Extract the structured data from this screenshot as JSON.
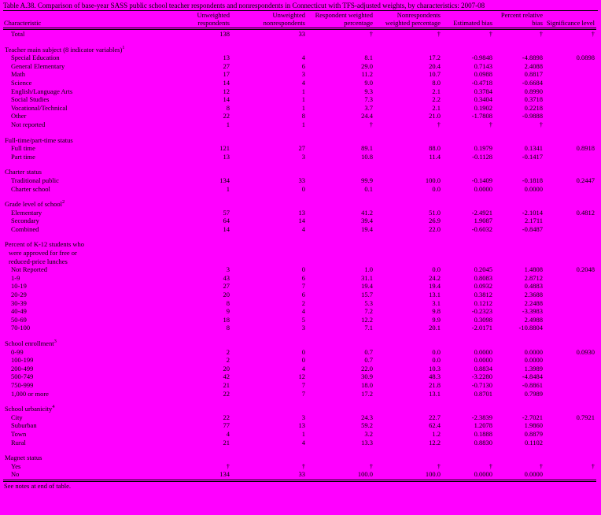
{
  "title": "Table A.38. Comparison of base-year SASS public school teacher respondents and nonrespondents in Connecticut with TFS-adjusted weights, by characteristics: 2007-08",
  "footer_note": "See notes at end of table.",
  "colors": {
    "background": "#FF00FF",
    "text": "#000000",
    "rule": "#000000"
  },
  "symbols": {
    "suppressed": "†"
  },
  "columns": [
    "Characteristic",
    "Unweighted respondents",
    "Unweighted nonrespondents",
    "Respondent weighted percentage",
    "Nonrespondents weighted percentage",
    "Estimated bias",
    "Percent relative bias",
    "Significance level"
  ],
  "rows": [
    {
      "t": "row",
      "label": "Total",
      "v": [
        "138",
        "33",
        "†",
        "†",
        "†",
        "†",
        "†"
      ]
    },
    {
      "t": "gap"
    },
    {
      "t": "sec",
      "label": "Teacher main subject (8 indicator variables)",
      "sup": "1"
    },
    {
      "t": "row",
      "label": "Special Education",
      "v": [
        "13",
        "4",
        "8.1",
        "17.2",
        "-0.9848",
        "-4.8898",
        "0.0898"
      ]
    },
    {
      "t": "row",
      "label": "General Elementary",
      "v": [
        "27",
        "6",
        "29.0",
        "20.4",
        "0.7143",
        "2.4088",
        ""
      ]
    },
    {
      "t": "row",
      "label": "Math",
      "v": [
        "17",
        "3",
        "11.2",
        "10.7",
        "0.0988",
        "0.8817",
        ""
      ]
    },
    {
      "t": "row",
      "label": "Science",
      "v": [
        "14",
        "4",
        "9.0",
        "8.0",
        "-0.4718",
        "-0.6684",
        ""
      ]
    },
    {
      "t": "row",
      "label": "English/Language Arts",
      "v": [
        "12",
        "1",
        "9.3",
        "2.1",
        "0.3784",
        "0.8990",
        ""
      ]
    },
    {
      "t": "row",
      "label": "Social Studies",
      "v": [
        "14",
        "1",
        "7.3",
        "2.2",
        "0.3404",
        "0.3718",
        ""
      ]
    },
    {
      "t": "row",
      "label": "Vocational/Technical",
      "v": [
        "8",
        "1",
        "3.7",
        "2.1",
        "0.1902",
        "0.2218",
        ""
      ]
    },
    {
      "t": "row",
      "label": "Other",
      "v": [
        "22",
        "8",
        "24.4",
        "21.0",
        "-1.7808",
        "-0.9888",
        ""
      ]
    },
    {
      "t": "row",
      "label": "Not reported",
      "v": [
        "1",
        "1",
        "†",
        "†",
        "†",
        "†",
        ""
      ]
    },
    {
      "t": "gap"
    },
    {
      "t": "sec",
      "label": "Full-time/part-time status"
    },
    {
      "t": "row",
      "label": "Full time",
      "v": [
        "121",
        "27",
        "89.1",
        "88.0",
        "0.1979",
        "0.1341",
        "0.8918"
      ]
    },
    {
      "t": "row",
      "label": "Part time",
      "v": [
        "13",
        "3",
        "10.8",
        "11.4",
        "-0.1128",
        "-0.1417",
        ""
      ]
    },
    {
      "t": "gap"
    },
    {
      "t": "sec",
      "label": "Charter status"
    },
    {
      "t": "row",
      "label": "Traditional public",
      "v": [
        "134",
        "33",
        "99.9",
        "100.0",
        "-0.1409",
        "-0.1818",
        "0.2447"
      ]
    },
    {
      "t": "row",
      "label": "Charter school",
      "v": [
        "1",
        "0",
        "0.1",
        "0.0",
        "0.0000",
        "0.0000",
        ""
      ]
    },
    {
      "t": "gap"
    },
    {
      "t": "sec",
      "label": "Grade level of school",
      "sup": "2"
    },
    {
      "t": "row",
      "label": "Elementary",
      "v": [
        "57",
        "13",
        "41.2",
        "51.0",
        "-2.4921",
        "-2.1014",
        "0.4812"
      ]
    },
    {
      "t": "row",
      "label": "Secondary",
      "v": [
        "64",
        "14",
        "39.4",
        "26.9",
        "1.9087",
        "2.1711",
        ""
      ]
    },
    {
      "t": "row",
      "label": "Combined",
      "v": [
        "14",
        "4",
        "19.4",
        "22.0",
        "-0.6032",
        "-0.8487",
        ""
      ]
    },
    {
      "t": "gap"
    },
    {
      "t": "sec",
      "label": "Percent of K-12 students who"
    },
    {
      "t": "sec2",
      "label": "were approved for free or"
    },
    {
      "t": "sec2",
      "label": "reduced-price lunches"
    },
    {
      "t": "row",
      "label": "Not Reported",
      "v": [
        "3",
        "0",
        "1.0",
        "0.0",
        "0.2045",
        "1.4808",
        "0.2048"
      ]
    },
    {
      "t": "row",
      "label": "1-9",
      "v": [
        "43",
        "6",
        "31.1",
        "24.2",
        "0.8083",
        "2.8712",
        ""
      ]
    },
    {
      "t": "row",
      "label": "10-19",
      "v": [
        "27",
        "7",
        "19.4",
        "19.4",
        "0.0932",
        "0.4883",
        ""
      ]
    },
    {
      "t": "row",
      "label": "20-29",
      "v": [
        "20",
        "6",
        "15.7",
        "13.1",
        "0.3812",
        "2.3688",
        ""
      ]
    },
    {
      "t": "row",
      "label": "30-39",
      "v": [
        "8",
        "2",
        "5.3",
        "3.1",
        "0.1212",
        "2.2488",
        ""
      ]
    },
    {
      "t": "row",
      "label": "40-49",
      "v": [
        "9",
        "4",
        "7.2",
        "9.8",
        "-0.2323",
        "-3.3983",
        ""
      ]
    },
    {
      "t": "row",
      "label": "50-69",
      "v": [
        "18",
        "5",
        "12.2",
        "9.9",
        "0.3098",
        "2.4988",
        ""
      ]
    },
    {
      "t": "row",
      "label": "70-100",
      "v": [
        "8",
        "3",
        "7.1",
        "20.1",
        "-2.0171",
        "-10.8804",
        ""
      ]
    },
    {
      "t": "gap"
    },
    {
      "t": "sec",
      "label": "School enrollment",
      "sup": "3"
    },
    {
      "t": "row",
      "label": "0-99",
      "v": [
        "2",
        "0",
        "0.7",
        "0.0",
        "0.0000",
        "0.0000",
        "0.0930"
      ]
    },
    {
      "t": "row",
      "label": "100-199",
      "v": [
        "2",
        "0",
        "0.7",
        "0.0",
        "0.0000",
        "0.0000",
        ""
      ]
    },
    {
      "t": "row",
      "label": "200-499",
      "v": [
        "20",
        "4",
        "22.0",
        "10.3",
        "0.8834",
        "1.3989",
        ""
      ]
    },
    {
      "t": "row",
      "label": "500-749",
      "v": [
        "42",
        "12",
        "30.9",
        "48.3",
        "-3.2280",
        "-4.8484",
        ""
      ]
    },
    {
      "t": "row",
      "label": "750-999",
      "v": [
        "21",
        "7",
        "18.0",
        "21.8",
        "-0.7130",
        "-0.8861",
        ""
      ]
    },
    {
      "t": "row",
      "label": "1,000 or more",
      "v": [
        "22",
        "7",
        "17.2",
        "13.1",
        "0.8701",
        "0.7989",
        ""
      ]
    },
    {
      "t": "gap"
    },
    {
      "t": "sec",
      "label": "School urbanicity",
      "sup": "4"
    },
    {
      "t": "row",
      "label": "City",
      "v": [
        "22",
        "3",
        "24.3",
        "22.7",
        "-2.3839",
        "-2.7021",
        "0.7921"
      ]
    },
    {
      "t": "row",
      "label": "Suburban",
      "v": [
        "77",
        "13",
        "59.2",
        "62.4",
        "1.2078",
        "1.9860",
        ""
      ]
    },
    {
      "t": "row",
      "label": "Town",
      "v": [
        "4",
        "1",
        "3.2",
        "1.2",
        "0.1888",
        "0.8879",
        ""
      ]
    },
    {
      "t": "row",
      "label": "Rural",
      "v": [
        "21",
        "4",
        "13.3",
        "12.2",
        "0.8830",
        "0.1102",
        ""
      ]
    },
    {
      "t": "gap"
    },
    {
      "t": "sec",
      "label": "Magnet status"
    },
    {
      "t": "row",
      "label": "Yes",
      "v": [
        "†",
        "†",
        "†",
        "†",
        "†",
        "†",
        "†"
      ]
    },
    {
      "t": "row",
      "label": "No",
      "v": [
        "134",
        "33",
        "100.0",
        "100.0",
        "0.0000",
        "0.0000",
        ""
      ]
    }
  ]
}
